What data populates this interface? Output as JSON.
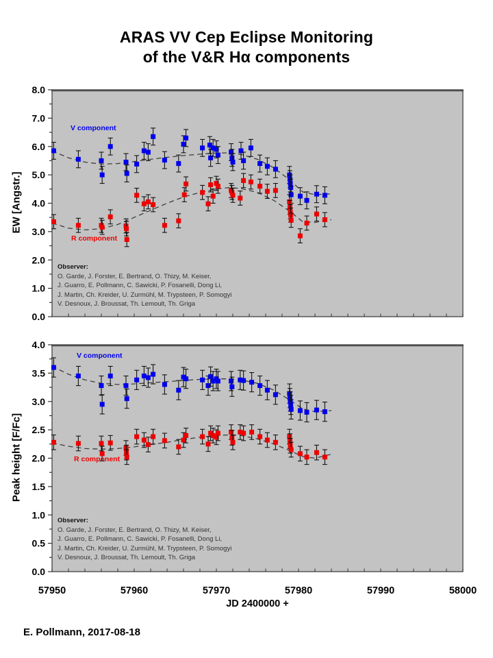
{
  "header": {
    "title_line1": "ARAS VV Cep Eclipse Monitoring",
    "title_line2": "of the V&R Hα components"
  },
  "footer": {
    "signature": "E. Pollmann, 2017-08-18"
  },
  "observers": {
    "heading": "Observer:",
    "lines": [
      "O. Garde, J. Forster, E. Bertrand, O. Thizy, M. Keiser,",
      "J. Guarro, E. Pollmann, C. Sawicki, P. Fosanelli, Dong Li,",
      "J. Martin, Ch. Kreider, U. Zurmühl, M. Trypsteen, P. Somogyi",
      "V. Desnoux, J. Broussat, Th. Lemoult, Th. Griga"
    ]
  },
  "colors": {
    "plot_bg": "#C3C3C3",
    "frame": "#4d4d4d",
    "trend": "#3d3d3d",
    "v": "#0000EE",
    "r": "#EE0000"
  },
  "x_axis": {
    "title": "JD 2400000 +",
    "min": 57950,
    "max": 58000,
    "minor_step": 2,
    "ticks": [
      57950,
      57960,
      57970,
      57980,
      57990,
      58000
    ]
  },
  "chart_data": [
    {
      "type": "scatter",
      "panel": "top",
      "ylabel": "EW [Angstr.]",
      "ylim": [
        0.0,
        8.0
      ],
      "ytick_step": 1.0,
      "yminor_step": 0.5,
      "xlim": [
        57950,
        58000
      ],
      "grid": false,
      "legend_position": "inside-labels",
      "series": [
        {
          "name": "V component",
          "color": "#0000EE",
          "marker": "square",
          "error_bar": 0.3,
          "points": [
            [
              57950.2,
              5.85
            ],
            [
              57953.2,
              5.55
            ],
            [
              57956.0,
              5.5
            ],
            [
              57956.1,
              5.0
            ],
            [
              57957.1,
              6.0
            ],
            [
              57959.0,
              5.45
            ],
            [
              57959.1,
              5.05
            ],
            [
              57960.3,
              5.38
            ],
            [
              57961.2,
              5.85
            ],
            [
              57961.7,
              5.8
            ],
            [
              57962.3,
              6.35
            ],
            [
              57963.7,
              5.52
            ],
            [
              57965.4,
              5.4
            ],
            [
              57966.0,
              6.08
            ],
            [
              57966.3,
              6.3
            ],
            [
              57968.3,
              5.95
            ],
            [
              57969.2,
              6.05
            ],
            [
              57969.3,
              5.6
            ],
            [
              57969.6,
              5.95
            ],
            [
              57970.0,
              5.9
            ],
            [
              57970.2,
              5.7
            ],
            [
              57971.8,
              5.8
            ],
            [
              57971.9,
              5.6
            ],
            [
              57972.0,
              5.45
            ],
            [
              57973.0,
              5.85
            ],
            [
              57973.3,
              5.5
            ],
            [
              57974.2,
              5.95
            ],
            [
              57975.3,
              5.4
            ],
            [
              57976.2,
              5.3
            ],
            [
              57977.2,
              5.2
            ],
            [
              57978.9,
              5.0
            ],
            [
              57978.95,
              4.85
            ],
            [
              57979.0,
              4.7
            ],
            [
              57979.05,
              4.55
            ],
            [
              57979.1,
              4.3
            ],
            [
              57980.2,
              4.25
            ],
            [
              57981.0,
              4.1
            ],
            [
              57982.2,
              4.32
            ],
            [
              57983.2,
              4.28
            ]
          ],
          "trend": [
            [
              57950,
              5.85
            ],
            [
              57952,
              5.6
            ],
            [
              57954,
              5.45
            ],
            [
              57956,
              5.38
            ],
            [
              57958,
              5.4
            ],
            [
              57960,
              5.47
            ],
            [
              57962,
              5.55
            ],
            [
              57964,
              5.62
            ],
            [
              57966,
              5.68
            ],
            [
              57968,
              5.73
            ],
            [
              57970,
              5.77
            ],
            [
              57971.5,
              5.78
            ],
            [
              57973,
              5.72
            ],
            [
              57975,
              5.55
            ],
            [
              57977,
              5.25
            ],
            [
              57979,
              4.8
            ],
            [
              57980.5,
              4.4
            ],
            [
              57982,
              4.3
            ],
            [
              57984,
              4.33
            ]
          ]
        },
        {
          "name": "R component",
          "color": "#EE0000",
          "marker": "square",
          "error_bar": 0.25,
          "points": [
            [
              57950.2,
              3.35
            ],
            [
              57953.2,
              3.22
            ],
            [
              57956.0,
              3.22
            ],
            [
              57956.1,
              3.15
            ],
            [
              57957.1,
              3.52
            ],
            [
              57959.0,
              3.2
            ],
            [
              57959.05,
              3.1
            ],
            [
              57959.1,
              2.72
            ],
            [
              57960.3,
              4.28
            ],
            [
              57961.2,
              3.98
            ],
            [
              57961.7,
              4.05
            ],
            [
              57962.3,
              3.95
            ],
            [
              57963.7,
              3.22
            ],
            [
              57965.4,
              3.38
            ],
            [
              57966.1,
              4.3
            ],
            [
              57966.3,
              4.68
            ],
            [
              57968.3,
              4.38
            ],
            [
              57969.0,
              3.98
            ],
            [
              57969.3,
              4.65
            ],
            [
              57969.6,
              4.25
            ],
            [
              57970.0,
              4.7
            ],
            [
              57970.2,
              4.6
            ],
            [
              57971.8,
              4.45
            ],
            [
              57971.9,
              4.38
            ],
            [
              57972.0,
              4.28
            ],
            [
              57972.9,
              4.18
            ],
            [
              57973.3,
              4.8
            ],
            [
              57974.2,
              4.75
            ],
            [
              57975.3,
              4.6
            ],
            [
              57976.2,
              4.42
            ],
            [
              57977.2,
              4.45
            ],
            [
              57978.9,
              4.05
            ],
            [
              57978.95,
              3.85
            ],
            [
              57979.0,
              3.7
            ],
            [
              57979.05,
              3.58
            ],
            [
              57979.1,
              3.4
            ],
            [
              57980.2,
              2.85
            ],
            [
              57981.0,
              3.3
            ],
            [
              57982.2,
              3.62
            ],
            [
              57983.2,
              3.42
            ]
          ],
          "trend": [
            [
              57950,
              3.3
            ],
            [
              57952,
              3.12
            ],
            [
              57954,
              3.06
            ],
            [
              57956,
              3.1
            ],
            [
              57958,
              3.25
            ],
            [
              57960,
              3.5
            ],
            [
              57962,
              3.75
            ],
            [
              57964,
              4.0
            ],
            [
              57966,
              4.22
            ],
            [
              57968,
              4.38
            ],
            [
              57970,
              4.5
            ],
            [
              57971.5,
              4.55
            ],
            [
              57973,
              4.52
            ],
            [
              57975,
              4.38
            ],
            [
              57977,
              4.1
            ],
            [
              57979,
              3.7
            ],
            [
              57980.5,
              3.35
            ],
            [
              57982,
              3.32
            ],
            [
              57984,
              3.42
            ]
          ]
        }
      ]
    },
    {
      "type": "scatter",
      "panel": "bottom",
      "ylabel": "Peak height [F/Fc]",
      "ylim": [
        0.0,
        4.0
      ],
      "ytick_step": 0.5,
      "yminor_step": 0.25,
      "xlim": [
        57950,
        58000
      ],
      "grid": false,
      "legend_position": "inside-labels",
      "series": [
        {
          "name": "V component",
          "color": "#0000EE",
          "marker": "square",
          "error_bar": 0.17,
          "points": [
            [
              57950.2,
              3.6
            ],
            [
              57953.2,
              3.45
            ],
            [
              57956.0,
              3.28
            ],
            [
              57956.1,
              2.95
            ],
            [
              57957.1,
              3.45
            ],
            [
              57959.0,
              3.28
            ],
            [
              57959.1,
              3.05
            ],
            [
              57960.3,
              3.38
            ],
            [
              57961.2,
              3.45
            ],
            [
              57961.7,
              3.42
            ],
            [
              57962.3,
              3.48
            ],
            [
              57963.7,
              3.3
            ],
            [
              57965.4,
              3.2
            ],
            [
              57966.0,
              3.43
            ],
            [
              57966.3,
              3.4
            ],
            [
              57968.3,
              3.38
            ],
            [
              57969.0,
              3.28
            ],
            [
              57969.3,
              3.44
            ],
            [
              57969.6,
              3.36
            ],
            [
              57970.0,
              3.4
            ],
            [
              57970.2,
              3.36
            ],
            [
              57971.8,
              3.36
            ],
            [
              57971.9,
              3.26
            ],
            [
              57972.9,
              3.38
            ],
            [
              57973.3,
              3.37
            ],
            [
              57974.3,
              3.34
            ],
            [
              57975.3,
              3.28
            ],
            [
              57976.2,
              3.2
            ],
            [
              57977.2,
              3.12
            ],
            [
              57978.9,
              3.14
            ],
            [
              57978.95,
              3.06
            ],
            [
              57979.0,
              3.0
            ],
            [
              57979.05,
              2.94
            ],
            [
              57979.1,
              2.86
            ],
            [
              57980.2,
              2.84
            ],
            [
              57981.0,
              2.81
            ],
            [
              57982.2,
              2.85
            ],
            [
              57983.2,
              2.82
            ]
          ],
          "trend": [
            [
              57950,
              3.62
            ],
            [
              57952,
              3.48
            ],
            [
              57954,
              3.38
            ],
            [
              57956,
              3.32
            ],
            [
              57958,
              3.3
            ],
            [
              57960,
              3.31
            ],
            [
              57962,
              3.33
            ],
            [
              57964,
              3.35
            ],
            [
              57966,
              3.37
            ],
            [
              57968,
              3.39
            ],
            [
              57970,
              3.4
            ],
            [
              57971.5,
              3.4
            ],
            [
              57973,
              3.38
            ],
            [
              57975,
              3.32
            ],
            [
              57977,
              3.2
            ],
            [
              57979,
              3.02
            ],
            [
              57980.5,
              2.87
            ],
            [
              57982,
              2.82
            ],
            [
              57984,
              2.84
            ]
          ]
        },
        {
          "name": "R component",
          "color": "#EE0000",
          "marker": "square",
          "error_bar": 0.13,
          "points": [
            [
              57950.2,
              2.28
            ],
            [
              57953.2,
              2.26
            ],
            [
              57956.0,
              2.26
            ],
            [
              57956.1,
              2.08
            ],
            [
              57957.1,
              2.27
            ],
            [
              57959.0,
              2.18
            ],
            [
              57959.05,
              2.1
            ],
            [
              57959.1,
              2.02
            ],
            [
              57960.3,
              2.38
            ],
            [
              57961.2,
              2.32
            ],
            [
              57961.7,
              2.24
            ],
            [
              57962.3,
              2.38
            ],
            [
              57963.7,
              2.31
            ],
            [
              57965.4,
              2.2
            ],
            [
              57966.0,
              2.32
            ],
            [
              57966.3,
              2.4
            ],
            [
              57968.3,
              2.38
            ],
            [
              57969.0,
              2.25
            ],
            [
              57969.3,
              2.44
            ],
            [
              57969.6,
              2.4
            ],
            [
              57970.0,
              2.37
            ],
            [
              57970.2,
              2.44
            ],
            [
              57971.8,
              2.46
            ],
            [
              57971.9,
              2.36
            ],
            [
              57972.0,
              2.28
            ],
            [
              57972.9,
              2.46
            ],
            [
              57973.3,
              2.44
            ],
            [
              57974.3,
              2.46
            ],
            [
              57975.3,
              2.38
            ],
            [
              57976.2,
              2.32
            ],
            [
              57977.2,
              2.28
            ],
            [
              57978.9,
              2.38
            ],
            [
              57978.95,
              2.3
            ],
            [
              57979.0,
              2.22
            ],
            [
              57979.1,
              2.15
            ],
            [
              57980.2,
              2.08
            ],
            [
              57981.0,
              2.02
            ],
            [
              57982.2,
              2.1
            ],
            [
              57983.2,
              2.02
            ]
          ],
          "trend": [
            [
              57950,
              2.27
            ],
            [
              57952,
              2.21
            ],
            [
              57954,
              2.17
            ],
            [
              57956,
              2.16
            ],
            [
              57958,
              2.17
            ],
            [
              57960,
              2.2
            ],
            [
              57962,
              2.24
            ],
            [
              57964,
              2.28
            ],
            [
              57966,
              2.33
            ],
            [
              57968,
              2.37
            ],
            [
              57970,
              2.4
            ],
            [
              57971.5,
              2.41
            ],
            [
              57973,
              2.4
            ],
            [
              57975,
              2.34
            ],
            [
              57977,
              2.25
            ],
            [
              57979,
              2.13
            ],
            [
              57980.5,
              2.03
            ],
            [
              57982,
              2.0
            ],
            [
              57984,
              2.07
            ]
          ]
        }
      ]
    }
  ]
}
